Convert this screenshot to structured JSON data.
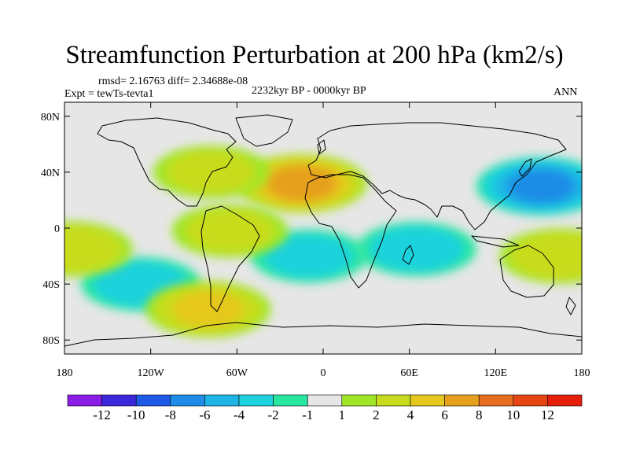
{
  "title": "Streamfunction Perturbation at 200 hPa (km2/s)",
  "stats": "rmsd= 2.16763 diff= 2.34688e-08",
  "experiment": "Expt = tewTs-tevta1",
  "period": "2232kyr BP - 0000kyr BP",
  "season": "ANN",
  "map": {
    "lat_labels": [
      "80N",
      "40N",
      "0",
      "40S",
      "80S"
    ],
    "lat_values": [
      80,
      40,
      0,
      -40,
      -80
    ],
    "lon_labels": [
      "180",
      "120W",
      "60W",
      "0",
      "60E",
      "120E",
      "180"
    ],
    "lon_values": [
      -180,
      -120,
      -60,
      0,
      60,
      120,
      180
    ]
  },
  "colorbar": {
    "labels": [
      "-12",
      "-10",
      "-8",
      "-6",
      "-4",
      "-2",
      "-1",
      "1",
      "2",
      "4",
      "6",
      "8",
      "10",
      "12"
    ],
    "colors": [
      "#8a1ee6",
      "#3c28dc",
      "#1e5ae6",
      "#1e8ce6",
      "#1eb4e6",
      "#1ed2dc",
      "#28e6a0",
      "#e6e6e6",
      "#a0e628",
      "#c8dc1e",
      "#e6c81e",
      "#e6a01e",
      "#e66e1e",
      "#e64614",
      "#e61e0a"
    ]
  },
  "chart_data": {
    "type": "heatmap",
    "title": "Streamfunction Perturbation at 200 hPa (km2/s)",
    "units": "km2/s",
    "x_range": [
      -180,
      180
    ],
    "y_range": [
      -90,
      90
    ],
    "levels": [
      -12,
      -10,
      -8,
      -6,
      -4,
      -2,
      -1,
      1,
      2,
      4,
      6,
      8,
      10,
      12
    ],
    "features": [
      {
        "name": "north-africa-high",
        "lon": -15,
        "lat": 32,
        "value": 7.5
      },
      {
        "name": "north-america-high",
        "lon": -78,
        "lat": 40,
        "value": 2.5
      },
      {
        "name": "east-asia-low",
        "lon": 152,
        "lat": 30,
        "value": -7
      },
      {
        "name": "indian-ocean-low",
        "lon": 65,
        "lat": -15,
        "value": -3
      },
      {
        "name": "south-pacific-low",
        "lon": -127,
        "lat": -40,
        "value": -3
      },
      {
        "name": "south-atlantic-low",
        "lon": -10,
        "lat": -20,
        "value": -2.5
      },
      {
        "name": "southeast-pacific-high",
        "lon": -80,
        "lat": -58,
        "value": 4.5
      },
      {
        "name": "australia-high",
        "lon": 165,
        "lat": -20,
        "value": 3.5
      },
      {
        "name": "east-pacific-high",
        "lon": -175,
        "lat": -15,
        "value": 3.5
      },
      {
        "name": "tropical-america-high",
        "lon": -65,
        "lat": -2,
        "value": 2.5
      }
    ]
  }
}
